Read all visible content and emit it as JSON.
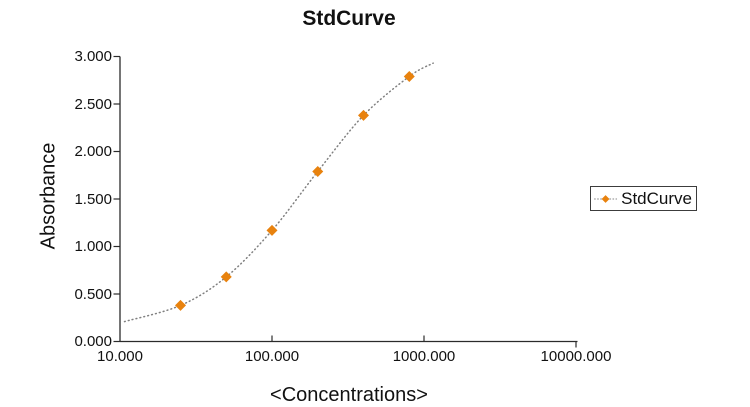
{
  "chart_data": {
    "type": "scatter",
    "title": "StdCurve",
    "xlabel": "<Concentrations>",
    "ylabel": "Absorbance",
    "x_scale": "log",
    "xlim": [
      10,
      10000
    ],
    "ylim": [
      0,
      3
    ],
    "grid": false,
    "x_ticks": [
      {
        "value": 10,
        "label": "10.000"
      },
      {
        "value": 100,
        "label": "100.000"
      },
      {
        "value": 1000,
        "label": "1000.000"
      },
      {
        "value": 10000,
        "label": "10000.000"
      }
    ],
    "y_ticks": [
      {
        "value": 0.0,
        "label": "0.000"
      },
      {
        "value": 0.5,
        "label": "0.500"
      },
      {
        "value": 1.0,
        "label": "1.000"
      },
      {
        "value": 1.5,
        "label": "1.500"
      },
      {
        "value": 2.0,
        "label": "2.000"
      },
      {
        "value": 2.5,
        "label": "2.500"
      },
      {
        "value": 3.0,
        "label": "3.000"
      }
    ],
    "series": [
      {
        "name": "StdCurve",
        "marker": "diamond",
        "marker_color": "#E8820E",
        "line_style": "dotted",
        "line_color": "#808080",
        "x": [
          25,
          50,
          100,
          200,
          400,
          800
        ],
        "y": [
          0.38,
          0.68,
          1.17,
          1.79,
          2.38,
          2.79
        ],
        "fit_extension": {
          "start": {
            "x": 10.7,
            "y": 0.21
          },
          "end": {
            "x": 1150,
            "y": 2.93
          }
        }
      }
    ],
    "legend": {
      "label": "StdCurve",
      "position": "right"
    }
  },
  "colors": {
    "axis": "#2b2b2b",
    "text": "#111111",
    "marker": "#E8820E",
    "curve": "#808080",
    "legend_border": "#3c3c3c",
    "background": "#ffffff"
  }
}
